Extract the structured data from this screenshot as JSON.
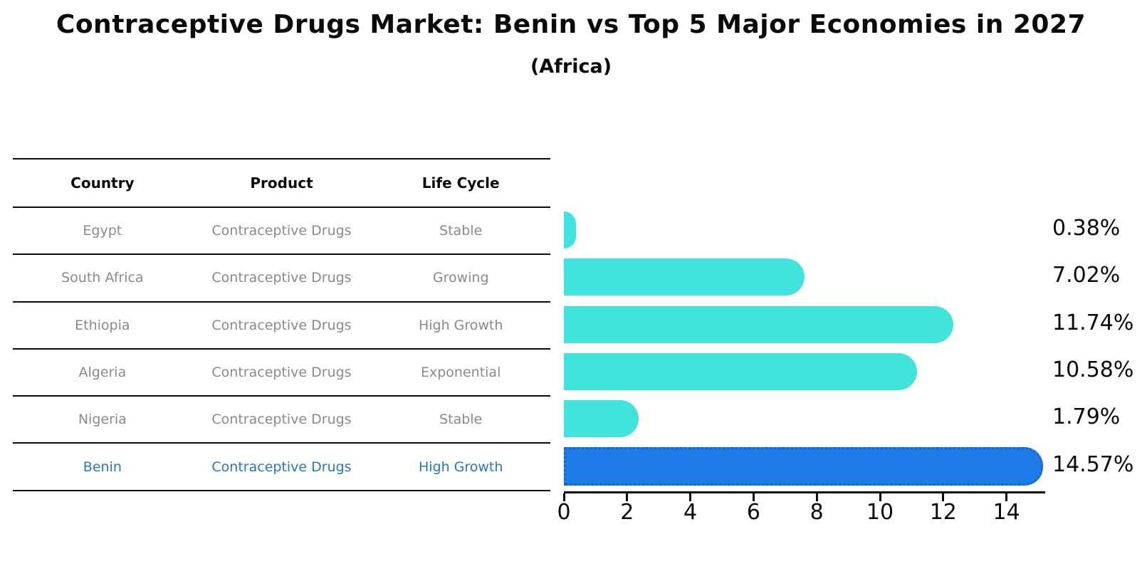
{
  "title": "Contraceptive Drugs Market: Benin vs Top 5 Major Economies in 2027",
  "subtitle": "(Africa)",
  "table": {
    "headers": [
      "Country",
      "Product",
      "Life Cycle"
    ],
    "rows": [
      {
        "country": "Egypt",
        "product": "Contraceptive Drugs",
        "life_cycle": "Stable",
        "highlight": false
      },
      {
        "country": "South Africa",
        "product": "Contraceptive Drugs",
        "life_cycle": "Growing",
        "highlight": false
      },
      {
        "country": "Ethiopia",
        "product": "Contraceptive Drugs",
        "life_cycle": "High Growth",
        "highlight": false
      },
      {
        "country": "Algeria",
        "product": "Contraceptive Drugs",
        "life_cycle": "Exponential",
        "highlight": false
      },
      {
        "country": "Nigeria",
        "product": "Contraceptive Drugs",
        "life_cycle": "Stable",
        "highlight": false
      },
      {
        "country": "Benin",
        "product": "Contraceptive Drugs",
        "life_cycle": "High Growth",
        "highlight": true
      }
    ]
  },
  "chart_data": {
    "type": "bar",
    "orientation": "horizontal",
    "title": "Contraceptive Drugs Market: Benin vs Top 5 Major Economies in 2027 (Africa)",
    "categories": [
      "Egypt",
      "South Africa",
      "Ethiopia",
      "Algeria",
      "Nigeria",
      "Benin"
    ],
    "values": [
      0.38,
      7.02,
      11.74,
      10.58,
      1.79,
      14.57
    ],
    "value_labels": [
      "0.38%",
      "7.02%",
      "11.74%",
      "10.58%",
      "1.79%",
      "14.57%"
    ],
    "xlabel": "",
    "ylabel": "",
    "xlim": [
      0,
      15.3
    ],
    "x_ticks": [
      0,
      2,
      4,
      6,
      8,
      10,
      12,
      14
    ],
    "grid": false,
    "legend": false,
    "bar_color": "#40E4DC",
    "highlight_index": 5,
    "highlight_color": "#1E7CE8",
    "highlight_border_color": "#1565CC",
    "text_color": "#0a0a0a",
    "muted_text_color": "#8a8a8a",
    "highlight_text_color": "#2878be"
  }
}
